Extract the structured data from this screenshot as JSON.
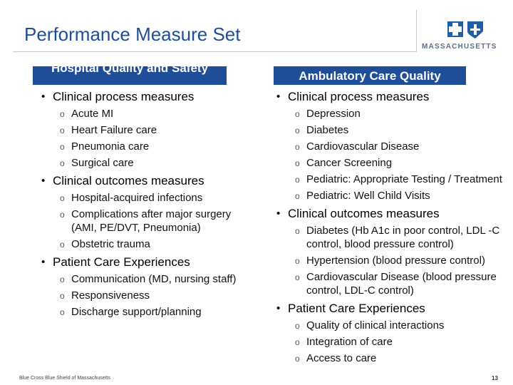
{
  "title": "Performance Measure Set",
  "logo_text": "MASSACHUSETTS",
  "footer": {
    "left": "Blue Cross Blue Shield of Massachusetts",
    "page": "13"
  },
  "left": {
    "header": "Hospital Quality and Safety",
    "sections": [
      {
        "label": "Clinical process measures",
        "items": [
          "Acute MI",
          "Heart Failure care",
          "Pneumonia care",
          "Surgical care"
        ]
      },
      {
        "label": "Clinical outcomes measures",
        "items": [
          "Hospital-acquired infections",
          "Complications after major surgery (AMI, PE/DVT, Pneumonia)",
          "Obstetric trauma"
        ]
      },
      {
        "label": "Patient Care Experiences",
        "items": [
          "Communication (MD, nursing staff)",
          "Responsiveness",
          "Discharge support/planning"
        ]
      }
    ]
  },
  "right": {
    "header": "Ambulatory Care Quality",
    "sections": [
      {
        "label": "Clinical process measures",
        "items": [
          "Depression",
          "Diabetes",
          "Cardiovascular Disease",
          "Cancer Screening",
          "Pediatric: Appropriate Testing / Treatment",
          "Pediatric: Well Child Visits"
        ]
      },
      {
        "label": "Clinical outcomes measures",
        "items": [
          "Diabetes (Hb A1c in poor control, LDL -C control, blood pressure control)",
          "Hypertension (blood pressure control)",
          "Cardiovascular Disease (blood pressure control, LDL-C control)"
        ]
      },
      {
        "label": "Patient Care Experiences",
        "items": [
          "Quality of clinical interactions",
          "Integration of care",
          "Access to care"
        ]
      }
    ]
  },
  "bullet_char": "•",
  "sub_bullet_char": "o",
  "colors": {
    "title": "#1f4e99",
    "header_bar": "#1f4e99"
  }
}
